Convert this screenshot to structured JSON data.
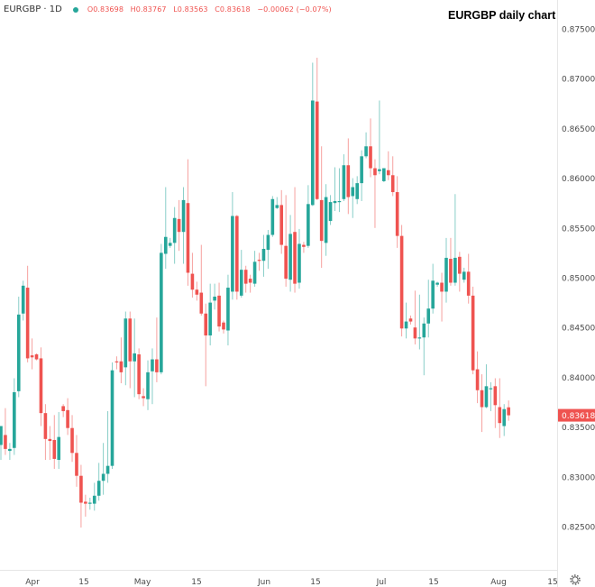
{
  "header": {
    "symbol": "EURGBP · 1D",
    "open": "O0.83698",
    "high": "H0.83767",
    "low": "L0.83563",
    "close": "C0.83618",
    "change": "−0.00062 (−0.07%)",
    "status_color": "#26a69a"
  },
  "chart_data": {
    "type": "candlestick",
    "title": "EURGBP daily chart",
    "ylim": [
      0.823,
      0.877
    ],
    "y_ticks": [
      "0.87500",
      "0.87000",
      "0.86500",
      "0.86000",
      "0.85500",
      "0.85000",
      "0.84500",
      "0.84000",
      "0.83500",
      "0.83000",
      "0.82500"
    ],
    "y_tick_values": [
      0.875,
      0.87,
      0.865,
      0.86,
      0.855,
      0.85,
      0.845,
      0.84,
      0.835,
      0.83,
      0.825
    ],
    "x_ticks": [
      "Apr",
      "15",
      "May",
      "15",
      "Jun",
      "15",
      "Jul",
      "15",
      "Aug",
      "15"
    ],
    "last_price": "0.83618",
    "up_color": "#26a69a",
    "down_color": "#ef5350",
    "candles_ohlc": [
      [
        0.8332,
        0.8351,
        0.8317,
        0.8351
      ],
      [
        0.8342,
        0.8369,
        0.8322,
        0.8328
      ],
      [
        0.8326,
        0.8334,
        0.8317,
        0.8328
      ],
      [
        0.8329,
        0.8399,
        0.8322,
        0.8385
      ],
      [
        0.8386,
        0.8481,
        0.838,
        0.8463
      ],
      [
        0.8464,
        0.8497,
        0.8457,
        0.8492
      ],
      [
        0.849,
        0.8512,
        0.8415,
        0.8419
      ],
      [
        0.8422,
        0.8439,
        0.8408,
        0.842
      ],
      [
        0.8423,
        0.8424,
        0.8417,
        0.8418
      ],
      [
        0.8419,
        0.843,
        0.8351,
        0.8364
      ],
      [
        0.8364,
        0.8373,
        0.8317,
        0.8338
      ],
      [
        0.8338,
        0.8351,
        0.8317,
        0.8336
      ],
      [
        0.8337,
        0.8362,
        0.8308,
        0.8318
      ],
      [
        0.8317,
        0.8365,
        0.8308,
        0.834
      ],
      [
        0.8371,
        0.8373,
        0.836,
        0.8366
      ],
      [
        0.8367,
        0.8379,
        0.8342,
        0.8349
      ],
      [
        0.8349,
        0.8362,
        0.8315,
        0.8324
      ],
      [
        0.8324,
        0.8342,
        0.829,
        0.8301
      ],
      [
        0.8301,
        0.8312,
        0.8249,
        0.8274
      ],
      [
        0.8275,
        0.8282,
        0.826,
        0.8273
      ],
      [
        0.8273,
        0.8279,
        0.8267,
        0.8274
      ],
      [
        0.8273,
        0.8294,
        0.8266,
        0.8281
      ],
      [
        0.8281,
        0.8314,
        0.8276,
        0.8296
      ],
      [
        0.8296,
        0.8334,
        0.8282,
        0.8303
      ],
      [
        0.8303,
        0.8366,
        0.8294,
        0.8311
      ],
      [
        0.8311,
        0.8415,
        0.8308,
        0.8407
      ],
      [
        0.8416,
        0.8421,
        0.8408,
        0.8415
      ],
      [
        0.8416,
        0.844,
        0.8394,
        0.8405
      ],
      [
        0.841,
        0.8466,
        0.8392,
        0.8459
      ],
      [
        0.8459,
        0.8466,
        0.8389,
        0.8416
      ],
      [
        0.8416,
        0.8459,
        0.838,
        0.8424
      ],
      [
        0.8423,
        0.8429,
        0.8378,
        0.8383
      ],
      [
        0.8381,
        0.8389,
        0.8371,
        0.8379
      ],
      [
        0.8378,
        0.8417,
        0.8367,
        0.8405
      ],
      [
        0.8406,
        0.8429,
        0.8373,
        0.8418
      ],
      [
        0.8418,
        0.846,
        0.8395,
        0.8405
      ],
      [
        0.8405,
        0.8534,
        0.8403,
        0.8525
      ],
      [
        0.8524,
        0.8591,
        0.8509,
        0.8541
      ],
      [
        0.8532,
        0.854,
        0.853,
        0.8535
      ],
      [
        0.8535,
        0.8571,
        0.8514,
        0.856
      ],
      [
        0.8559,
        0.8578,
        0.8527,
        0.8546
      ],
      [
        0.8546,
        0.8591,
        0.8514,
        0.8578
      ],
      [
        0.8575,
        0.8619,
        0.8492,
        0.8505
      ],
      [
        0.8504,
        0.8525,
        0.848,
        0.8488
      ],
      [
        0.8488,
        0.8496,
        0.8477,
        0.8483
      ],
      [
        0.8485,
        0.8533,
        0.8462,
        0.8464
      ],
      [
        0.8464,
        0.8474,
        0.8391,
        0.8442
      ],
      [
        0.8442,
        0.8494,
        0.8432,
        0.8475
      ],
      [
        0.8477,
        0.8494,
        0.8468,
        0.8481
      ],
      [
        0.8482,
        0.8495,
        0.8446,
        0.8451
      ],
      [
        0.8455,
        0.8457,
        0.8444,
        0.8448
      ],
      [
        0.8447,
        0.8503,
        0.8432,
        0.849
      ],
      [
        0.8486,
        0.8586,
        0.8478,
        0.8562
      ],
      [
        0.8562,
        0.8563,
        0.8478,
        0.8486
      ],
      [
        0.8482,
        0.8528,
        0.848,
        0.8508
      ],
      [
        0.8508,
        0.8512,
        0.8485,
        0.8494
      ],
      [
        0.8499,
        0.8503,
        0.8485,
        0.8495
      ],
      [
        0.8494,
        0.8527,
        0.8491,
        0.8516
      ],
      [
        0.8518,
        0.8525,
        0.8507,
        0.8517
      ],
      [
        0.8517,
        0.8543,
        0.8501,
        0.8529
      ],
      [
        0.8528,
        0.8548,
        0.8509,
        0.8543
      ],
      [
        0.8543,
        0.8582,
        0.8541,
        0.8579
      ],
      [
        0.857,
        0.8581,
        0.8569,
        0.8573
      ],
      [
        0.8573,
        0.8588,
        0.8524,
        0.8533
      ],
      [
        0.8532,
        0.8583,
        0.8491,
        0.8499
      ],
      [
        0.8498,
        0.8563,
        0.8486,
        0.8544
      ],
      [
        0.8546,
        0.8591,
        0.8485,
        0.8494
      ],
      [
        0.8495,
        0.8549,
        0.8489,
        0.8534
      ],
      [
        0.8533,
        0.8536,
        0.8525,
        0.8531
      ],
      [
        0.8532,
        0.8593,
        0.853,
        0.8574
      ],
      [
        0.8573,
        0.8716,
        0.8572,
        0.8678
      ],
      [
        0.8677,
        0.8721,
        0.8578,
        0.8579
      ],
      [
        0.8578,
        0.8632,
        0.851,
        0.8537
      ],
      [
        0.8535,
        0.8594,
        0.8522,
        0.8581
      ],
      [
        0.8557,
        0.8583,
        0.8553,
        0.8576
      ],
      [
        0.8575,
        0.8611,
        0.8567,
        0.8577
      ],
      [
        0.8576,
        0.861,
        0.8566,
        0.8577
      ],
      [
        0.8579,
        0.8624,
        0.8577,
        0.8613
      ],
      [
        0.8613,
        0.864,
        0.8564,
        0.8581
      ],
      [
        0.8582,
        0.86,
        0.856,
        0.8591
      ],
      [
        0.8579,
        0.8602,
        0.8574,
        0.8595
      ],
      [
        0.8595,
        0.8628,
        0.8577,
        0.8622
      ],
      [
        0.8622,
        0.8646,
        0.862,
        0.8632
      ],
      [
        0.8632,
        0.866,
        0.8601,
        0.861
      ],
      [
        0.861,
        0.8619,
        0.855,
        0.8603
      ],
      [
        0.8607,
        0.8678,
        0.8604,
        0.8609
      ],
      [
        0.8597,
        0.861,
        0.8596,
        0.861
      ],
      [
        0.8608,
        0.8627,
        0.8598,
        0.8603
      ],
      [
        0.8603,
        0.8622,
        0.8582,
        0.8586
      ],
      [
        0.8586,
        0.8602,
        0.853,
        0.8542
      ],
      [
        0.8542,
        0.8553,
        0.8441,
        0.8449
      ],
      [
        0.8449,
        0.8475,
        0.8439,
        0.8456
      ],
      [
        0.8459,
        0.8462,
        0.8453,
        0.8456
      ],
      [
        0.845,
        0.8487,
        0.8433,
        0.8439
      ],
      [
        0.8439,
        0.8483,
        0.8428,
        0.844
      ],
      [
        0.844,
        0.846,
        0.8402,
        0.8454
      ],
      [
        0.8454,
        0.8498,
        0.844,
        0.8469
      ],
      [
        0.8469,
        0.8514,
        0.8464,
        0.8497
      ],
      [
        0.8493,
        0.8496,
        0.8491,
        0.8495
      ],
      [
        0.8495,
        0.8505,
        0.8456,
        0.8486
      ],
      [
        0.8486,
        0.854,
        0.8475,
        0.852
      ],
      [
        0.8519,
        0.854,
        0.8492,
        0.8495
      ],
      [
        0.8495,
        0.8584,
        0.8492,
        0.852
      ],
      [
        0.8521,
        0.8526,
        0.8486,
        0.8504
      ],
      [
        0.8498,
        0.851,
        0.8495,
        0.8506
      ],
      [
        0.8506,
        0.8524,
        0.8474,
        0.8482
      ],
      [
        0.8482,
        0.8491,
        0.8403,
        0.8407
      ],
      [
        0.8408,
        0.8426,
        0.8374,
        0.8387
      ],
      [
        0.8387,
        0.8403,
        0.8345,
        0.837
      ],
      [
        0.837,
        0.8413,
        0.8369,
        0.8391
      ],
      [
        0.8388,
        0.8395,
        0.8366,
        0.8389
      ],
      [
        0.8391,
        0.8399,
        0.8349,
        0.8372
      ],
      [
        0.837,
        0.8399,
        0.8339,
        0.8354
      ],
      [
        0.8351,
        0.8373,
        0.8341,
        0.8368
      ],
      [
        0.83698,
        0.83767,
        0.83563,
        0.83618
      ]
    ]
  }
}
